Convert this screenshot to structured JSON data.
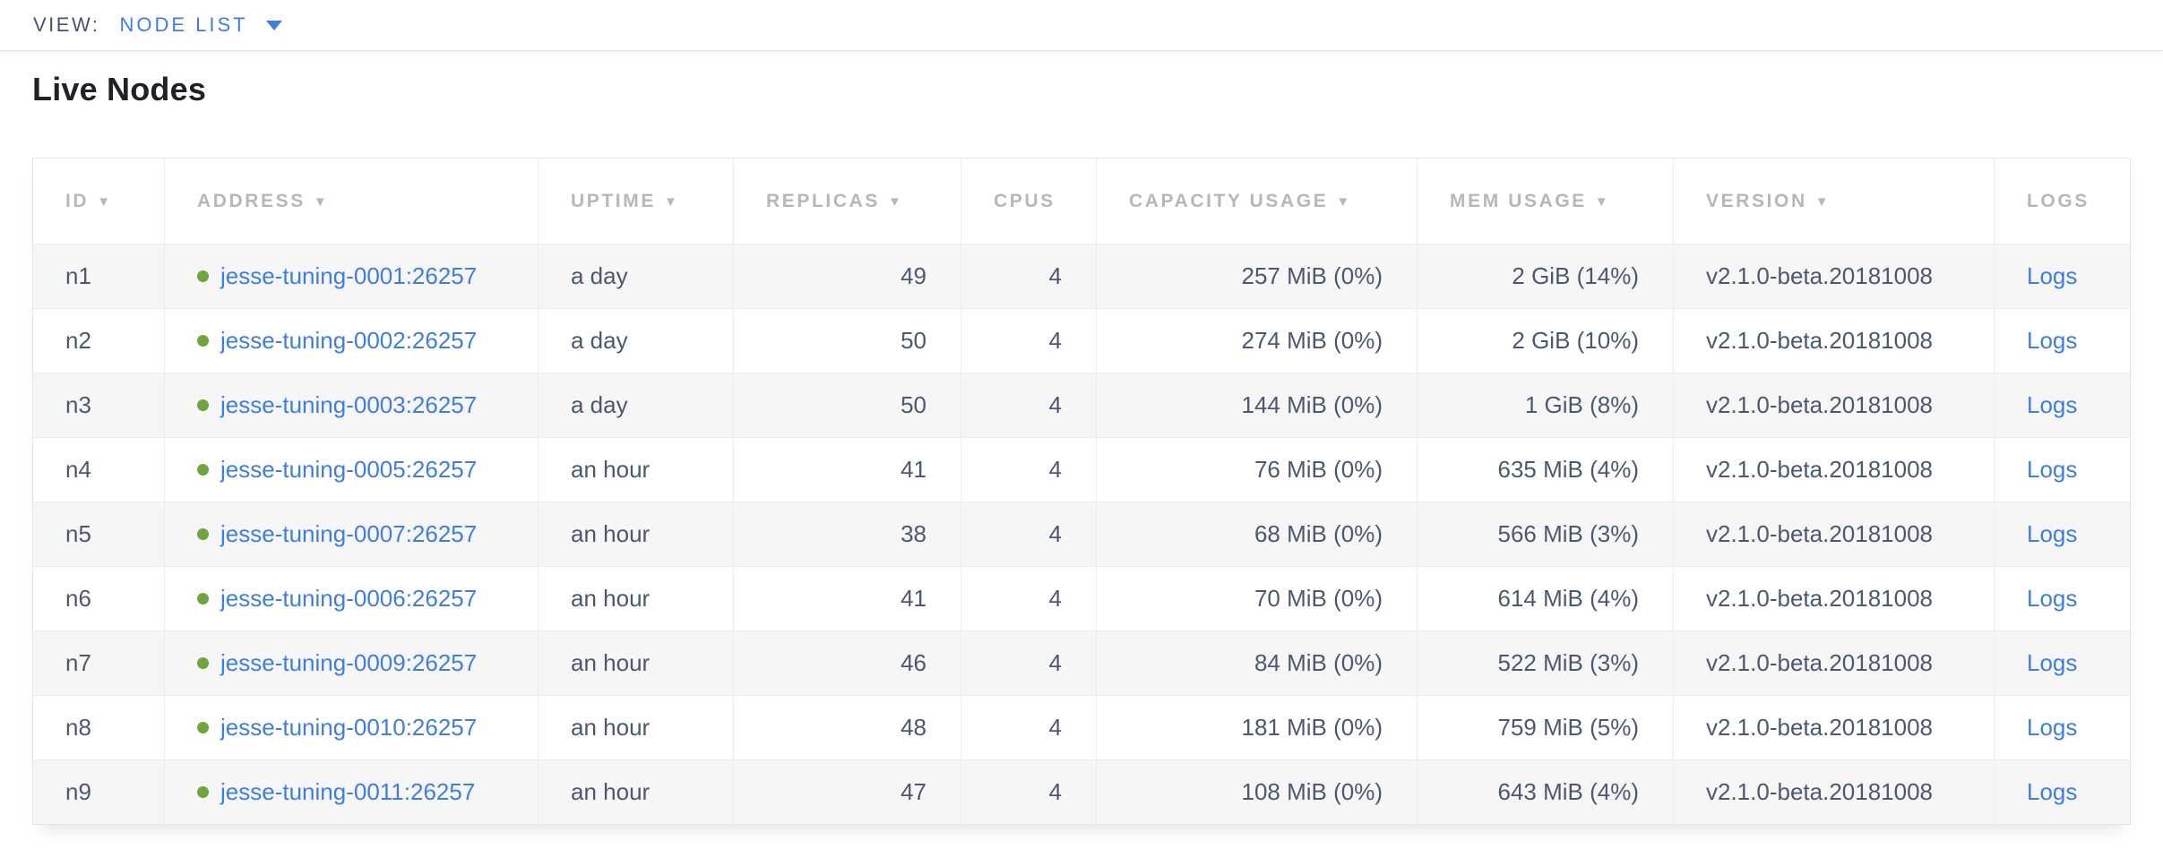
{
  "topbar": {
    "view_label": "VIEW:",
    "view_value": "NODE LIST"
  },
  "page_title": "Live Nodes",
  "table": {
    "columns": [
      {
        "key": "id",
        "label": "ID",
        "sorted": true,
        "align": "left"
      },
      {
        "key": "address",
        "label": "ADDRESS",
        "sorted": true,
        "align": "left"
      },
      {
        "key": "uptime",
        "label": "UPTIME",
        "sorted": true,
        "align": "left"
      },
      {
        "key": "replicas",
        "label": "REPLICAS",
        "sorted": true,
        "align": "right"
      },
      {
        "key": "cpus",
        "label": "CPUS",
        "sorted": false,
        "align": "right"
      },
      {
        "key": "capacity",
        "label": "CAPACITY USAGE",
        "sorted": true,
        "align": "right"
      },
      {
        "key": "mem",
        "label": "MEM USAGE",
        "sorted": true,
        "align": "right"
      },
      {
        "key": "version",
        "label": "VERSION",
        "sorted": true,
        "align": "left"
      },
      {
        "key": "logs",
        "label": "LOGS",
        "sorted": false,
        "align": "left"
      }
    ],
    "rows": [
      {
        "id": "n1",
        "address": "jesse-tuning-0001:26257",
        "uptime": "a day",
        "replicas": "49",
        "cpus": "4",
        "capacity": "257 MiB (0%)",
        "mem": "2 GiB (14%)",
        "version": "v2.1.0-beta.20181008",
        "logs": "Logs"
      },
      {
        "id": "n2",
        "address": "jesse-tuning-0002:26257",
        "uptime": "a day",
        "replicas": "50",
        "cpus": "4",
        "capacity": "274 MiB (0%)",
        "mem": "2 GiB (10%)",
        "version": "v2.1.0-beta.20181008",
        "logs": "Logs"
      },
      {
        "id": "n3",
        "address": "jesse-tuning-0003:26257",
        "uptime": "a day",
        "replicas": "50",
        "cpus": "4",
        "capacity": "144 MiB (0%)",
        "mem": "1 GiB (8%)",
        "version": "v2.1.0-beta.20181008",
        "logs": "Logs"
      },
      {
        "id": "n4",
        "address": "jesse-tuning-0005:26257",
        "uptime": "an hour",
        "replicas": "41",
        "cpus": "4",
        "capacity": "76 MiB (0%)",
        "mem": "635 MiB (4%)",
        "version": "v2.1.0-beta.20181008",
        "logs": "Logs"
      },
      {
        "id": "n5",
        "address": "jesse-tuning-0007:26257",
        "uptime": "an hour",
        "replicas": "38",
        "cpus": "4",
        "capacity": "68 MiB (0%)",
        "mem": "566 MiB (3%)",
        "version": "v2.1.0-beta.20181008",
        "logs": "Logs"
      },
      {
        "id": "n6",
        "address": "jesse-tuning-0006:26257",
        "uptime": "an hour",
        "replicas": "41",
        "cpus": "4",
        "capacity": "70 MiB (0%)",
        "mem": "614 MiB (4%)",
        "version": "v2.1.0-beta.20181008",
        "logs": "Logs"
      },
      {
        "id": "n7",
        "address": "jesse-tuning-0009:26257",
        "uptime": "an hour",
        "replicas": "46",
        "cpus": "4",
        "capacity": "84 MiB (0%)",
        "mem": "522 MiB (3%)",
        "version": "v2.1.0-beta.20181008",
        "logs": "Logs"
      },
      {
        "id": "n8",
        "address": "jesse-tuning-0010:26257",
        "uptime": "an hour",
        "replicas": "48",
        "cpus": "4",
        "capacity": "181 MiB (0%)",
        "mem": "759 MiB (5%)",
        "version": "v2.1.0-beta.20181008",
        "logs": "Logs"
      },
      {
        "id": "n9",
        "address": "jesse-tuning-0011:26257",
        "uptime": "an hour",
        "replicas": "47",
        "cpus": "4",
        "capacity": "108 MiB (0%)",
        "mem": "643 MiB (4%)",
        "version": "v2.1.0-beta.20181008",
        "logs": "Logs"
      }
    ]
  },
  "icons": {
    "sort_arrow": "▼",
    "node_status": "live-dot"
  },
  "colors": {
    "link_blue": "#3f7de0",
    "node_live_green": "#6ea73c",
    "header_gray": "#b4b7bc",
    "text_slate": "#4c5870",
    "row_stripe": "#f6f6f7"
  }
}
